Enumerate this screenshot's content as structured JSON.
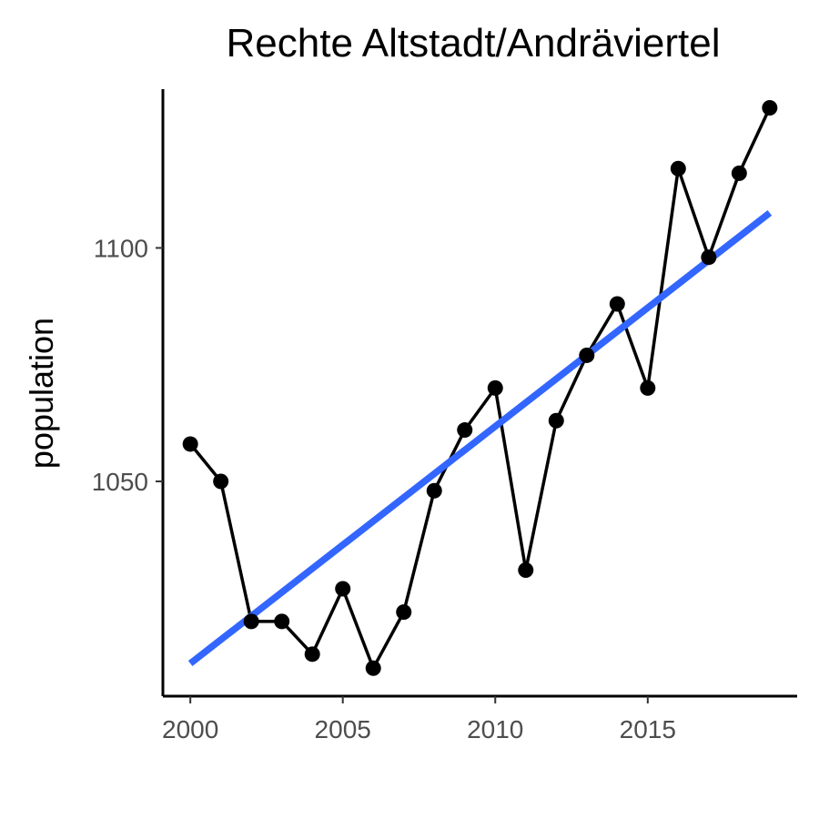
{
  "chart_data": {
    "type": "line",
    "title": "Rechte Altstadt/Andräviertel",
    "xlabel": "",
    "ylabel": "population",
    "x": [
      2000,
      2001,
      2002,
      2003,
      2004,
      2005,
      2006,
      2007,
      2008,
      2009,
      2010,
      2011,
      2012,
      2013,
      2014,
      2015,
      2016,
      2017,
      2018,
      2019
    ],
    "series": [
      {
        "values": [
          1058,
          1050,
          1020,
          1020,
          1013,
          1027,
          1010,
          1022,
          1048,
          1061,
          1070,
          1031,
          1063,
          1077,
          1088,
          1070,
          1117,
          1098,
          1116,
          1130
        ]
      }
    ],
    "trend": {
      "x": [
        2000,
        2019
      ],
      "y": [
        1011,
        1107.5
      ]
    },
    "xticks": [
      2000,
      2005,
      2010,
      2015
    ],
    "yticks": [
      1050,
      1100
    ],
    "xlim": [
      1999.1,
      2019.9
    ],
    "ylim": [
      1004,
      1134
    ],
    "grid": false,
    "legend": "none",
    "colors": {
      "series": "#000000",
      "trend": "#3366ff"
    }
  }
}
